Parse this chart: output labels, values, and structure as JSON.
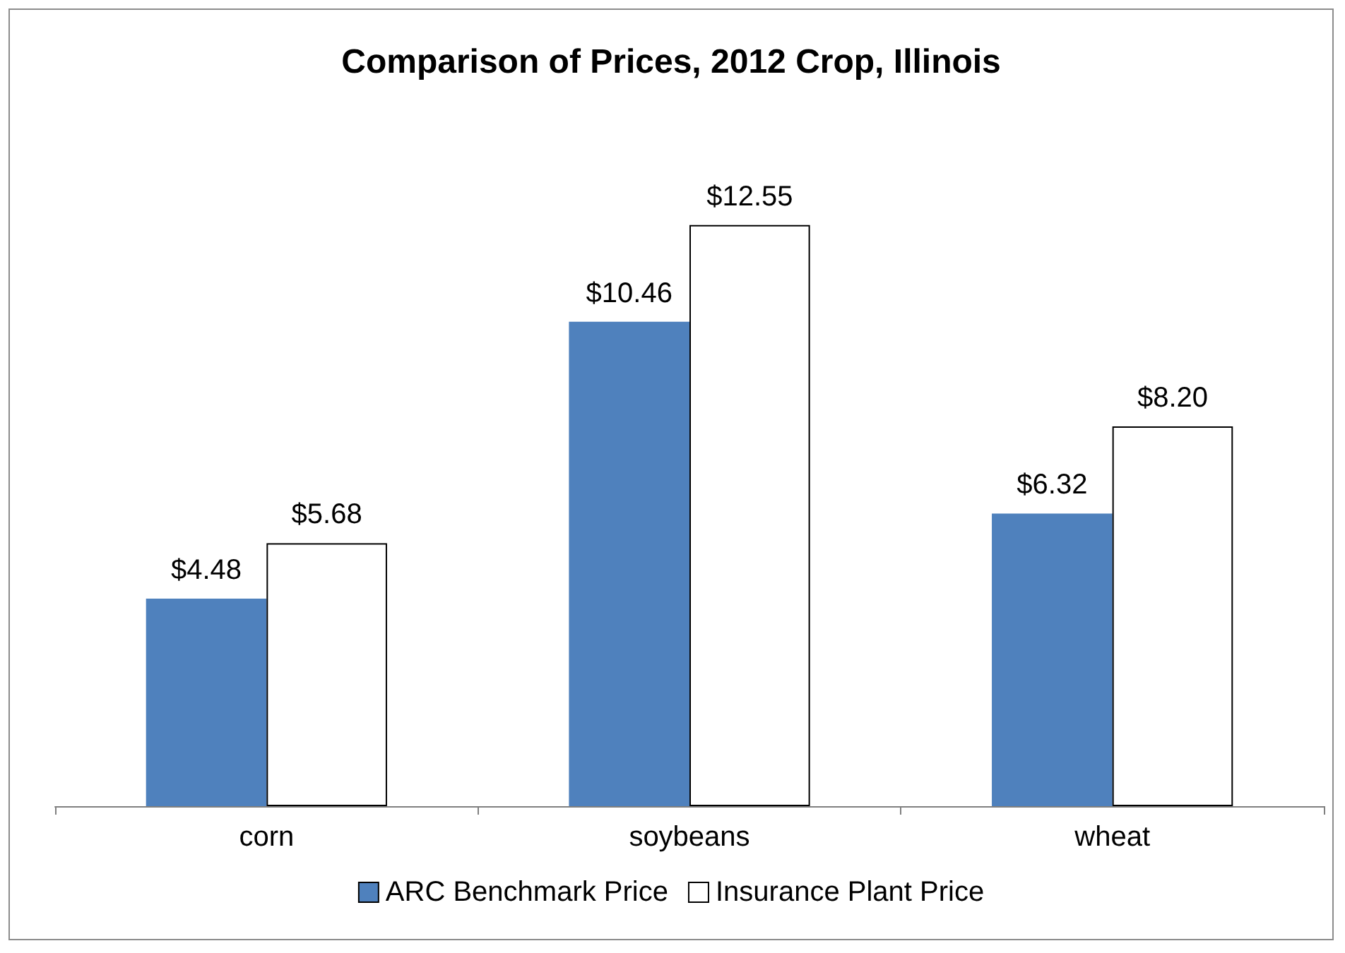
{
  "chart_data": {
    "type": "bar",
    "title": "Comparison of Prices, 2012 Crop, Illinois",
    "categories": [
      "corn",
      "soybeans",
      "wheat"
    ],
    "series": [
      {
        "name": "ARC Benchmark Price",
        "color": "#4f81bd",
        "values": [
          4.48,
          10.46,
          6.32
        ],
        "value_labels": [
          "$4.48",
          "$10.46",
          "$6.32"
        ]
      },
      {
        "name": "Insurance Plant Price",
        "color": "#ffffff",
        "values": [
          5.68,
          12.55,
          8.2
        ],
        "value_labels": [
          "$5.68",
          "$12.55",
          "$8.20"
        ]
      }
    ],
    "legend": "bottom",
    "grid": false
  }
}
